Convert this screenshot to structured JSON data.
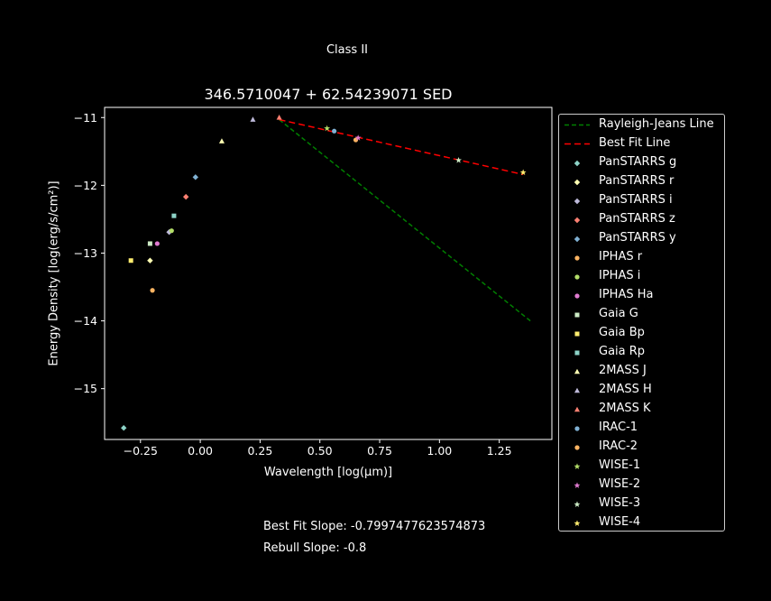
{
  "figure": {
    "suptitle": "Class II",
    "notes": {
      "best_fit": "Best Fit Slope: -0.7997477623574873",
      "rebull": "Rebull Slope: -0.8"
    }
  },
  "chart_data": {
    "type": "scatter",
    "title": "346.5710047 + 62.54239071 SED",
    "xlabel": "Wavelength [log(μm)]",
    "ylabel": "Energy Density [log(erg/s/cm²)]",
    "xlim": [
      -0.4,
      1.47
    ],
    "ylim": [
      -15.75,
      -10.85
    ],
    "xticks": [
      -0.25,
      0.0,
      0.25,
      0.5,
      0.75,
      1.0,
      1.25
    ],
    "xtick_labels": [
      "−0.25",
      "0.00",
      "0.25",
      "0.50",
      "0.75",
      "1.00",
      "1.25"
    ],
    "yticks": [
      -15,
      -14,
      -13,
      -12,
      -11
    ],
    "ytick_labels": [
      "−15",
      "−14",
      "−13",
      "−12",
      "−11"
    ],
    "grid": false,
    "legend_position": "outside-right",
    "lines": [
      {
        "name": "Rayleigh-Jeans Line",
        "color": "#008000",
        "dash": "5,3",
        "x": [
          0.33,
          1.38
        ],
        "y": [
          -11.03,
          -14.0
        ]
      },
      {
        "name": "Best Fit Line",
        "color": "#ff0000",
        "dash": "7,4",
        "x": [
          0.33,
          1.35
        ],
        "y": [
          -11.03,
          -11.84
        ]
      }
    ],
    "series": [
      {
        "name": "PanSTARRS g",
        "marker": "diamond",
        "color": "#8dd3c7",
        "x": [
          -0.32
        ],
        "y": [
          -15.58
        ]
      },
      {
        "name": "PanSTARRS r",
        "marker": "diamond",
        "color": "#ffffb3",
        "x": [
          -0.21
        ],
        "y": [
          -13.11
        ]
      },
      {
        "name": "PanSTARRS i",
        "marker": "diamond",
        "color": "#bebada",
        "x": [
          -0.13
        ],
        "y": [
          -12.69
        ]
      },
      {
        "name": "PanSTARRS z",
        "marker": "diamond",
        "color": "#fb8072",
        "x": [
          -0.06
        ],
        "y": [
          -12.17
        ]
      },
      {
        "name": "PanSTARRS y",
        "marker": "diamond",
        "color": "#80b1d3",
        "x": [
          -0.02
        ],
        "y": [
          -11.88
        ]
      },
      {
        "name": "IPHAS r",
        "marker": "circle",
        "color": "#fdb462",
        "x": [
          -0.2
        ],
        "y": [
          -13.55
        ]
      },
      {
        "name": "IPHAS i",
        "marker": "circle",
        "color": "#b3de69",
        "x": [
          -0.12
        ],
        "y": [
          -12.67
        ]
      },
      {
        "name": "IPHAS Ha",
        "marker": "circle",
        "color": "#e07bd0",
        "x": [
          -0.18
        ],
        "y": [
          -12.86
        ]
      },
      {
        "name": "Gaia G",
        "marker": "square",
        "color": "#ccebc5",
        "x": [
          -0.21
        ],
        "y": [
          -12.86
        ]
      },
      {
        "name": "Gaia Bp",
        "marker": "square",
        "color": "#ffed6f",
        "x": [
          -0.29
        ],
        "y": [
          -13.11
        ]
      },
      {
        "name": "Gaia Rp",
        "marker": "square",
        "color": "#8dd3c7",
        "x": [
          -0.11
        ],
        "y": [
          -12.45
        ]
      },
      {
        "name": "2MASS J",
        "marker": "triangle",
        "color": "#ffffb3",
        "x": [
          0.09
        ],
        "y": [
          -11.35
        ]
      },
      {
        "name": "2MASS H",
        "marker": "triangle",
        "color": "#bebada",
        "x": [
          0.22
        ],
        "y": [
          -11.03
        ]
      },
      {
        "name": "2MASS K",
        "marker": "triangle",
        "color": "#fb8072",
        "x": [
          0.33
        ],
        "y": [
          -11.0
        ]
      },
      {
        "name": "IRAC-1",
        "marker": "circle",
        "color": "#80b1d3",
        "x": [
          0.56
        ],
        "y": [
          -11.2
        ]
      },
      {
        "name": "IRAC-2",
        "marker": "circle",
        "color": "#fdb462",
        "x": [
          0.65
        ],
        "y": [
          -11.33
        ]
      },
      {
        "name": "WISE-1",
        "marker": "star",
        "color": "#b3de69",
        "x": [
          0.53
        ],
        "y": [
          -11.16
        ]
      },
      {
        "name": "WISE-2",
        "marker": "star",
        "color": "#e07bd0",
        "x": [
          0.66
        ],
        "y": [
          -11.3
        ]
      },
      {
        "name": "WISE-3",
        "marker": "star",
        "color": "#ccebc5",
        "x": [
          1.08
        ],
        "y": [
          -11.63
        ]
      },
      {
        "name": "WISE-4",
        "marker": "star",
        "color": "#ffed6f",
        "x": [
          1.35
        ],
        "y": [
          -11.81
        ]
      }
    ]
  }
}
